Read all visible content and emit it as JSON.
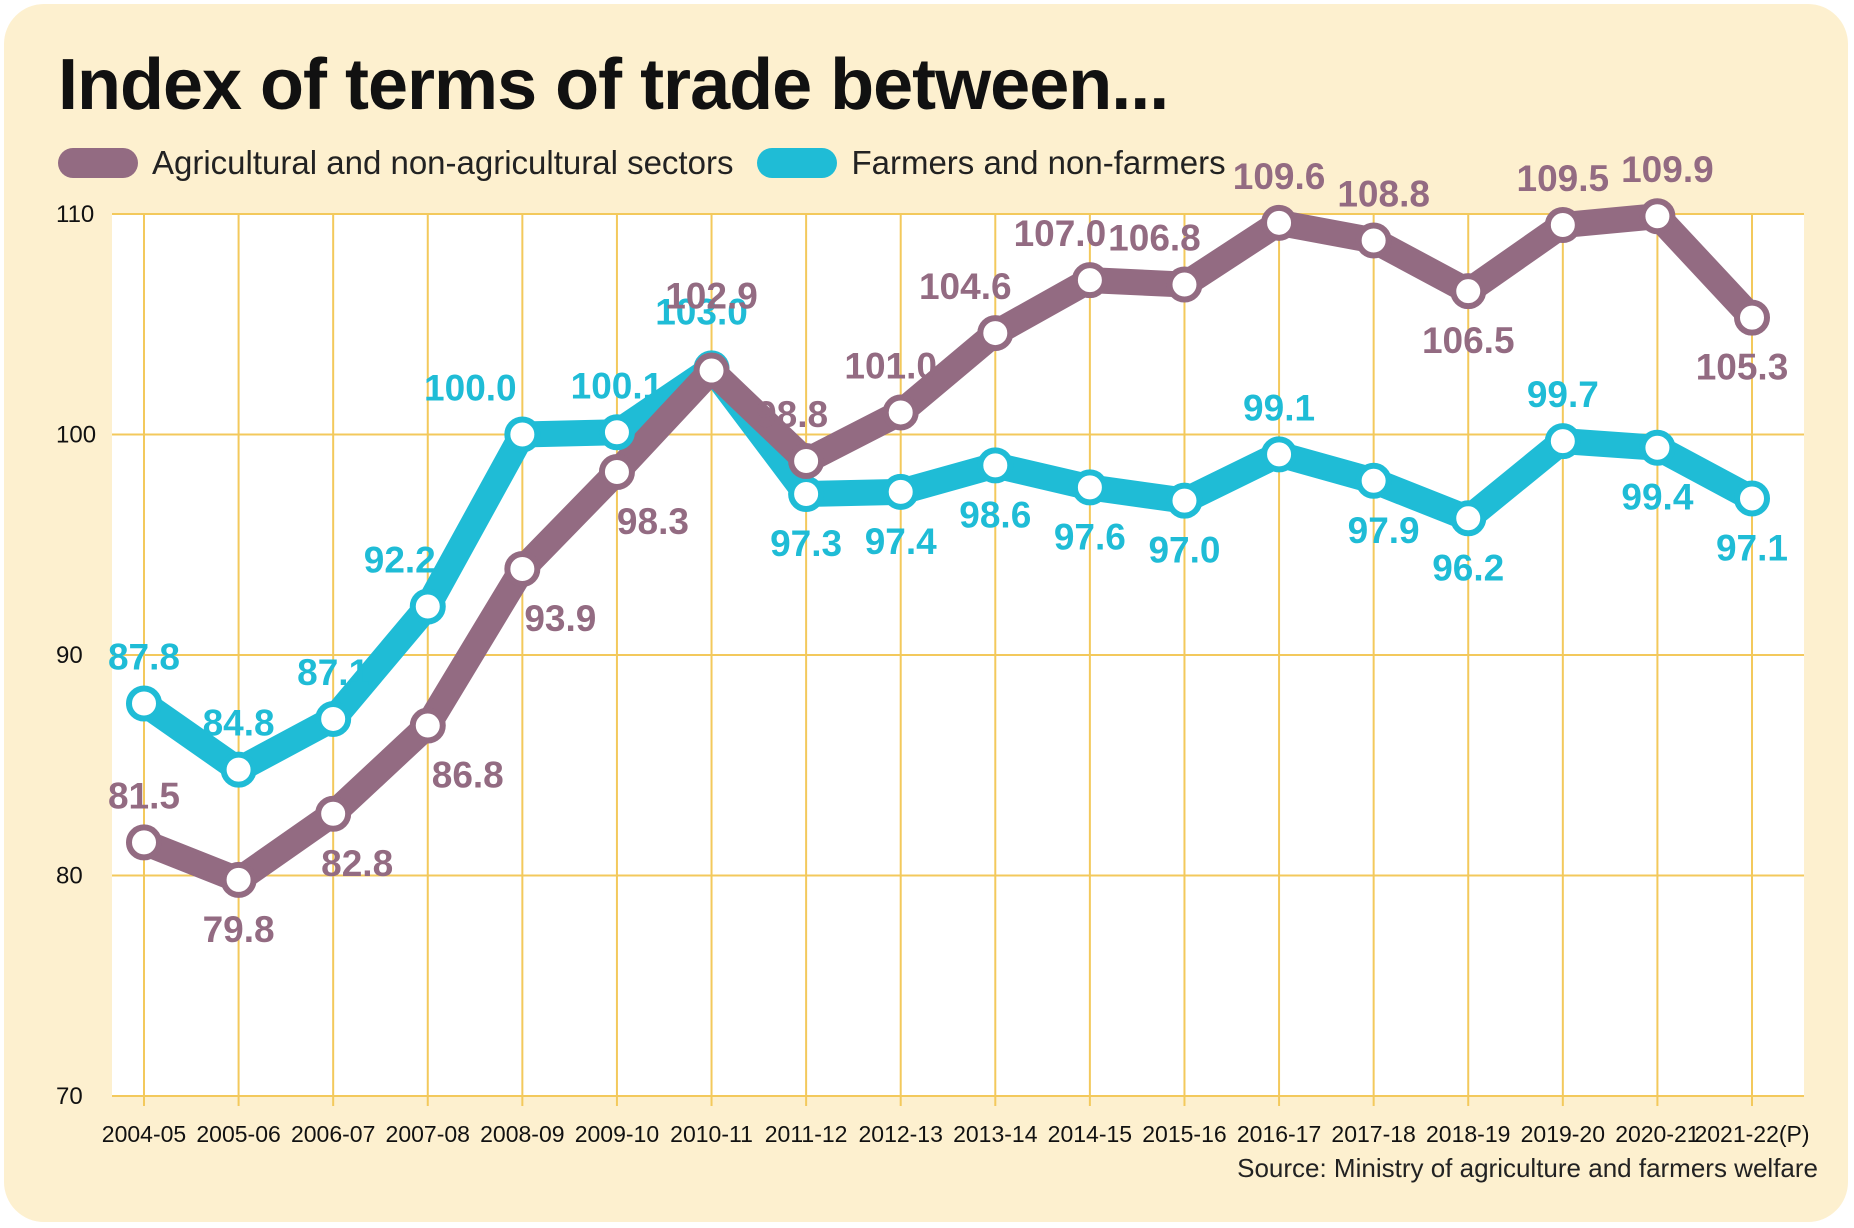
{
  "chart_data": {
    "type": "line",
    "title": "Index of terms of trade between...",
    "source": "Source: Ministry of agriculture and farmers welfare",
    "xlabel": "",
    "ylabel": "",
    "ylim": [
      70,
      110
    ],
    "yticks": [
      70,
      80,
      90,
      100,
      110
    ],
    "grid": true,
    "legend_position": "top-left",
    "categories": [
      "2004-05",
      "2005-06",
      "2006-07",
      "2007-08",
      "2008-09",
      "2009-10",
      "2010-11",
      "2011-12",
      "2012-13",
      "2013-14",
      "2014-15",
      "2015-16",
      "2016-17",
      "2017-18",
      "2018-19",
      "2019-20",
      "2020-21",
      "2021-22(P)"
    ],
    "series": [
      {
        "name": "Agricultural and non-agricultural sectors",
        "color": "#936b82",
        "values": [
          81.5,
          79.8,
          82.8,
          86.8,
          93.9,
          98.3,
          102.9,
          98.8,
          101.0,
          104.6,
          107.0,
          106.8,
          109.6,
          108.8,
          106.5,
          109.5,
          109.9,
          105.3
        ],
        "labels": [
          "81.5",
          "79.8",
          "82.8",
          "86.8",
          "93.9",
          "98.3",
          "102.9",
          "98.8",
          "101.0",
          "104.6",
          "107.0",
          "106.8",
          "109.6",
          "108.8",
          "106.5",
          "109.5",
          "109.9",
          "105.3"
        ]
      },
      {
        "name": "Farmers and non-farmers",
        "color": "#1fbcd6",
        "values": [
          87.8,
          84.8,
          87.1,
          92.2,
          100.0,
          100.1,
          103.0,
          97.3,
          97.4,
          98.6,
          97.6,
          97.0,
          99.1,
          97.9,
          96.2,
          99.7,
          99.4,
          97.1
        ],
        "labels": [
          "87.8",
          "84.8",
          "87.1",
          "92.2",
          "100.0",
          "100.1",
          "103.0",
          "97.3",
          "97.4",
          "98.6",
          "97.6",
          "97.0",
          "99.1",
          "97.9",
          "96.2",
          "99.7",
          "99.4",
          "97.1"
        ]
      }
    ]
  },
  "colors": {
    "background": "#fdf0cf",
    "plot": "#ffffff",
    "grid": "#f3c95c"
  }
}
